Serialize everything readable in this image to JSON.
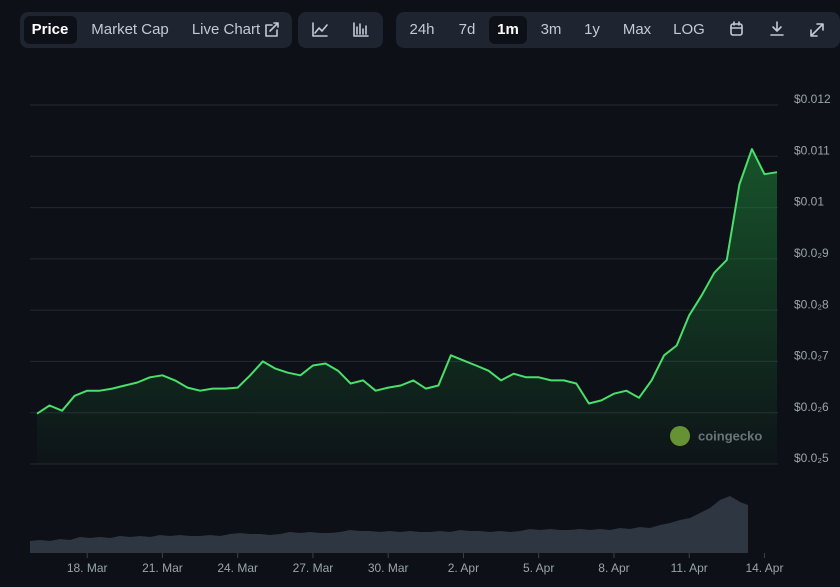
{
  "toolbar": {
    "tabs": [
      "Price",
      "Market Cap",
      "Live Chart"
    ],
    "ranges": [
      "24h",
      "7d",
      "1m",
      "3m",
      "1y",
      "Max",
      "LOG"
    ]
  },
  "watermark": "coingecko",
  "chart_data": {
    "type": "line",
    "color": "#4ade6a",
    "grid": true,
    "categories": [
      null,
      null,
      null,
      null,
      "18. Mar",
      null,
      null,
      null,
      null,
      null,
      "21. Mar",
      null,
      null,
      null,
      null,
      null,
      "24. Mar",
      null,
      null,
      null,
      null,
      null,
      "27. Mar",
      null,
      null,
      null,
      null,
      null,
      "30. Mar",
      null,
      null,
      null,
      null,
      null,
      "2. Apr",
      null,
      null,
      null,
      null,
      null,
      "5. Apr",
      null,
      null,
      null,
      null,
      null,
      "8. Apr",
      null,
      null,
      null,
      null,
      null,
      "11. Apr",
      null,
      null,
      null,
      null,
      null,
      "14. Apr",
      null
    ],
    "values": [
      0.00598,
      0.00614,
      0.00604,
      0.00633,
      0.00643,
      0.00643,
      0.00647,
      0.00653,
      0.00659,
      0.00669,
      0.00673,
      0.00663,
      0.00649,
      0.00643,
      0.00647,
      0.00647,
      0.00649,
      0.00673,
      0.007,
      0.00686,
      0.00678,
      0.00673,
      0.00692,
      0.00696,
      0.00682,
      0.00657,
      0.00663,
      0.00643,
      0.00649,
      0.00653,
      0.00663,
      0.00647,
      0.00653,
      0.00712,
      0.00702,
      0.00692,
      0.00682,
      0.00663,
      0.00676,
      0.00669,
      0.00669,
      0.00663,
      0.00663,
      0.00657,
      0.00618,
      0.00624,
      0.00637,
      0.00643,
      0.00629,
      0.00663,
      0.00712,
      0.00731,
      0.0079,
      0.00829,
      0.00873,
      0.00898,
      0.01045,
      0.01114,
      0.01065,
      0.01069
    ],
    "ylim": [
      0.005,
      0.012
    ],
    "yticks": [
      {
        "value": 0.005,
        "label": "$0.0₂5"
      },
      {
        "value": 0.006,
        "label": "$0.0₂6"
      },
      {
        "value": 0.007,
        "label": "$0.0₂7"
      },
      {
        "value": 0.008,
        "label": "$0.0₂8"
      },
      {
        "value": 0.009,
        "label": "$0.0₂9"
      },
      {
        "value": 0.01,
        "label": "$0.01"
      },
      {
        "value": 0.011,
        "label": "$0.011"
      },
      {
        "value": 0.012,
        "label": "$0.012"
      }
    ]
  }
}
